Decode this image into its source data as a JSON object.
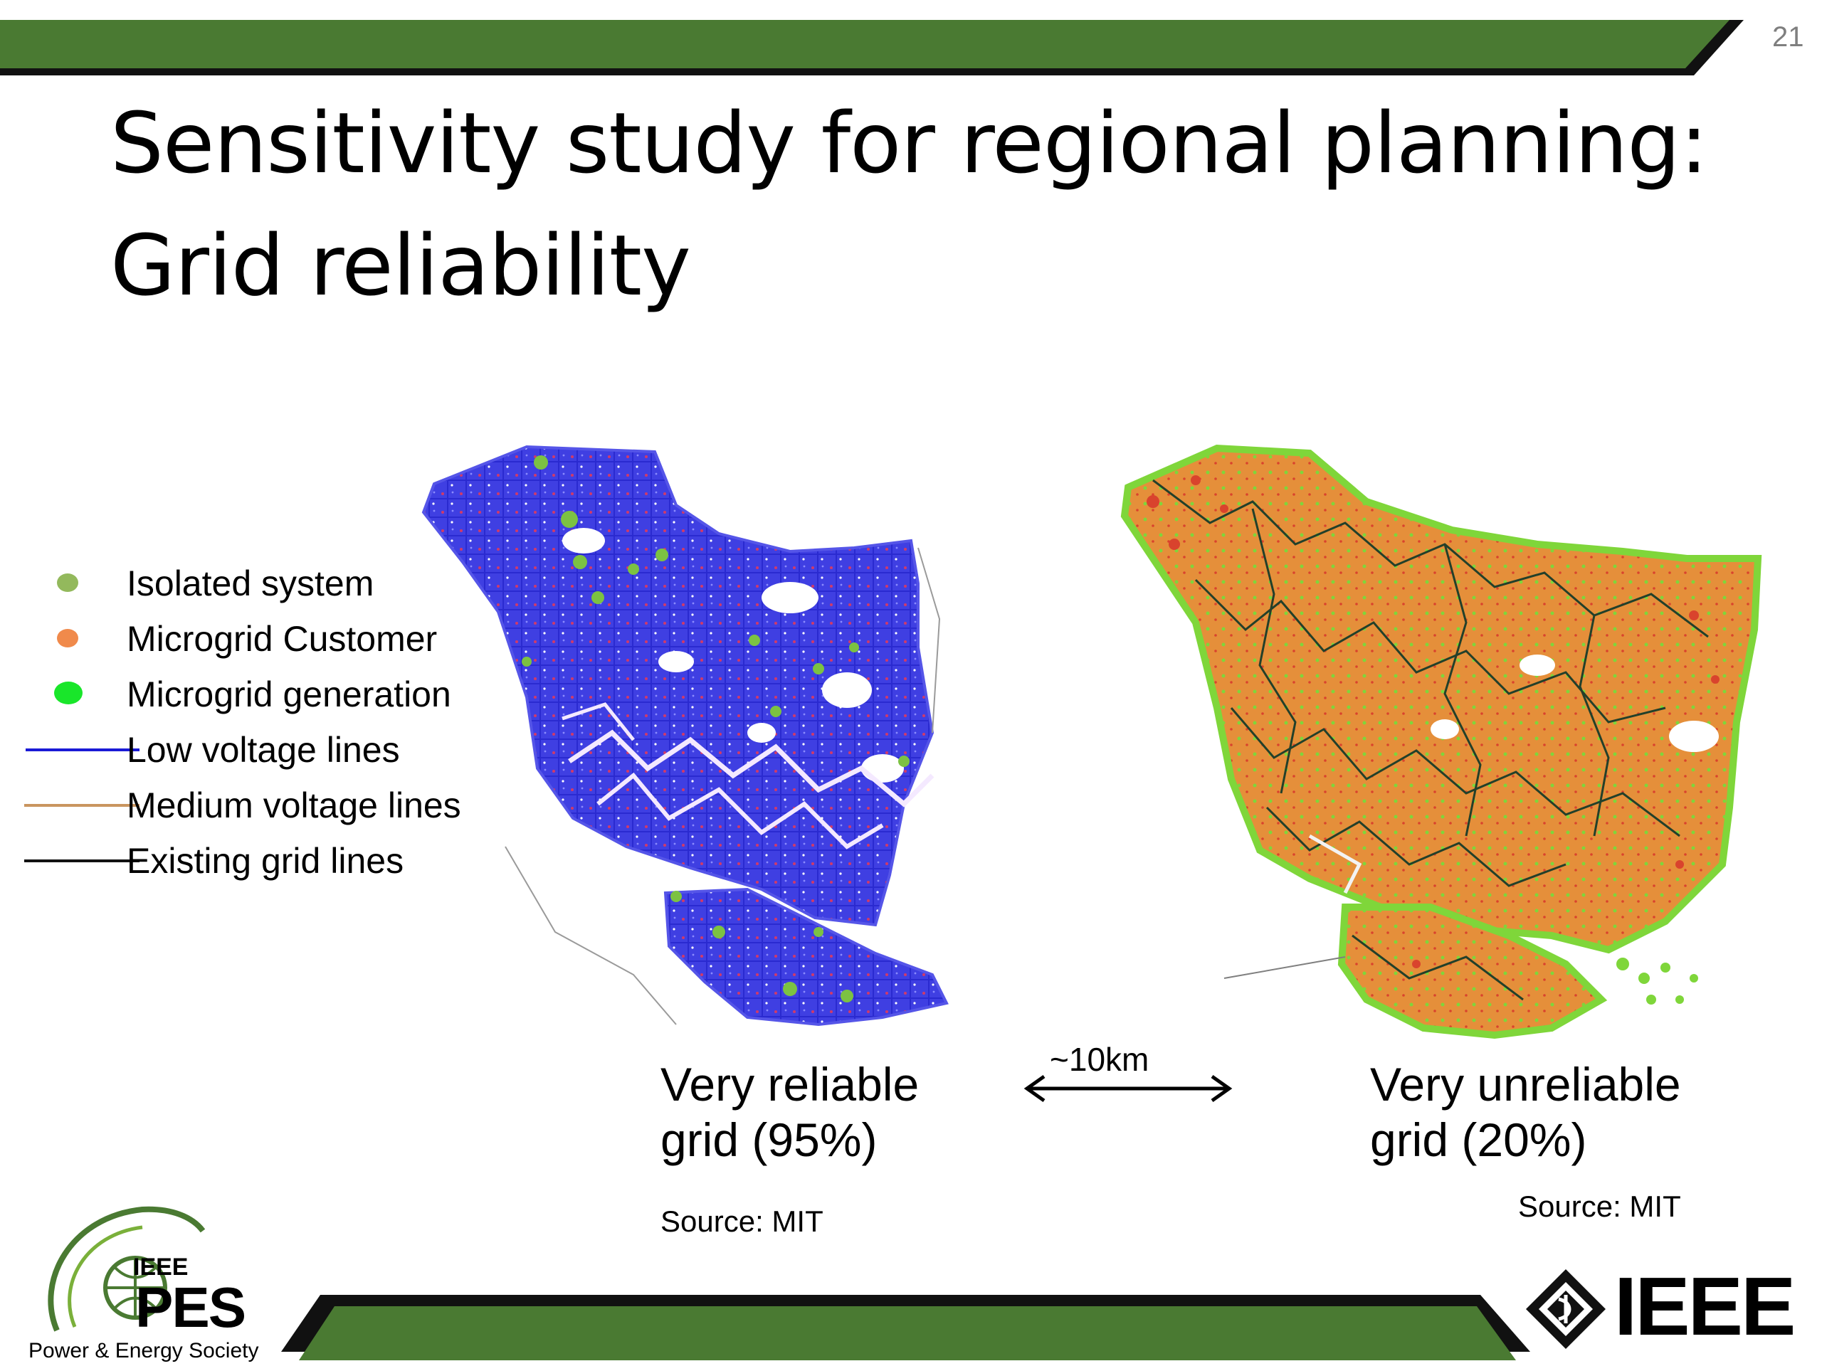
{
  "slide": {
    "page_number": "21",
    "title_line1": "Sensitivity study for regional planning:",
    "title_line2": "Grid reliability"
  },
  "legend": {
    "items": [
      {
        "label": "Isolated system",
        "symbol": "dot",
        "color": "#93b95c"
      },
      {
        "label": "Microgrid Customer",
        "symbol": "dot",
        "color": "#f08a4b"
      },
      {
        "label": "Microgrid generation",
        "symbol": "dot",
        "color": "#19e62a"
      },
      {
        "label": "Low voltage lines",
        "symbol": "line",
        "color": "#1a1ad6"
      },
      {
        "label": "Medium voltage lines",
        "symbol": "line",
        "color": "#c9955f"
      },
      {
        "label": "Existing grid lines",
        "symbol": "line",
        "color": "#111111"
      }
    ]
  },
  "maps": {
    "left": {
      "caption_line1": "Very reliable",
      "caption_line2": "grid (95%)",
      "source": "Source: MIT",
      "fill": "#3b3be0",
      "accent": "#7cc242"
    },
    "right": {
      "caption_line1": "Very unreliable",
      "caption_line2": "grid (20%)",
      "source": "Source: MIT",
      "fill": "#e8913a",
      "accent": "#7fd63a"
    },
    "scale_label": "~10km"
  },
  "logos": {
    "ieee_small": "IEEE",
    "pes": "PES",
    "society": "Power & Energy Society",
    "ieee_main": "IEEE"
  },
  "colors": {
    "band_green": "#4a7a32",
    "band_dark": "#111111"
  }
}
